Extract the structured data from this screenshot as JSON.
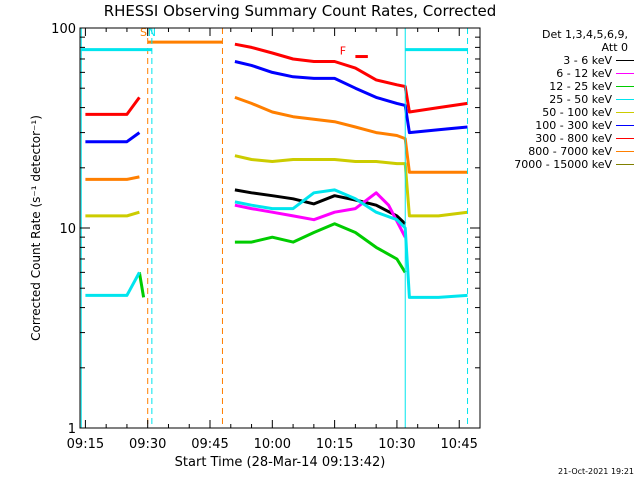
{
  "chart_data": {
    "type": "line",
    "title": "RHESSI Observing Summary Count Rates, Corrected",
    "xlabel": "Start Time (28-Mar-14 09:13:42)",
    "ylabel": "Corrected Count Rate (s⁻¹ detector⁻¹)",
    "y_scale": "log",
    "ylim": [
      1,
      100
    ],
    "y_ticks": [
      "1",
      "10",
      "100"
    ],
    "xlim": [
      "09:13:42",
      "10:50:00"
    ],
    "x_ticks": [
      "09:15",
      "09:30",
      "09:45",
      "10:00",
      "10:15",
      "10:30",
      "10:45"
    ],
    "legend_header": [
      "Det 1,3,4,5,6,9,",
      "Att 0"
    ],
    "legend_position": "right",
    "series": [
      {
        "name": "3 - 6 keV",
        "color": "#000000",
        "x": [
          "09:15",
          "09:20",
          "09:25",
          "09:28",
          "09:29",
          "09:51",
          "09:55",
          "10:00",
          "10:05",
          "10:10",
          "10:15",
          "10:20",
          "10:25",
          "10:30",
          "10:32"
        ],
        "y": [
          null,
          null,
          null,
          null,
          null,
          15.5,
          15,
          14.5,
          14,
          13.2,
          14.5,
          13.8,
          13,
          11.5,
          10.5
        ]
      },
      {
        "name": "6 - 12 keV",
        "color": "#ff00ff",
        "x": [
          "09:51",
          "09:55",
          "10:00",
          "10:05",
          "10:10",
          "10:15",
          "10:20",
          "10:25",
          "10:28",
          "10:32"
        ],
        "y": [
          13,
          12.5,
          12,
          11.5,
          11,
          12,
          12.5,
          15,
          13,
          9
        ]
      },
      {
        "name": "12 - 25 keV",
        "color": "#00cc00",
        "x": [
          "09:28",
          "09:29",
          "09:51",
          "09:55",
          "10:00",
          "10:05",
          "10:10",
          "10:15",
          "10:20",
          "10:25",
          "10:30",
          "10:32"
        ],
        "y": [
          6,
          4.5,
          8.5,
          8.5,
          9,
          8.5,
          9.5,
          10.5,
          9.5,
          8,
          7,
          6
        ]
      },
      {
        "name": "25 - 50 keV",
        "color": "#00e5ee",
        "x": [
          "09:15",
          "09:20",
          "09:25",
          "09:28",
          "09:51",
          "09:55",
          "10:00",
          "10:05",
          "10:10",
          "10:15",
          "10:20",
          "10:25",
          "10:30",
          "10:32",
          "10:33",
          "10:40",
          "10:47"
        ],
        "y": [
          4.6,
          4.6,
          4.6,
          6,
          13.5,
          13,
          12.5,
          12.5,
          15,
          15.5,
          14,
          12,
          11,
          10,
          4.5,
          4.5,
          4.6
        ]
      },
      {
        "name": "50 - 100 keV",
        "color": "#cccc00",
        "x": [
          "09:15",
          "09:20",
          "09:25",
          "09:28",
          "09:51",
          "09:55",
          "10:00",
          "10:05",
          "10:10",
          "10:15",
          "10:20",
          "10:25",
          "10:30",
          "10:32",
          "10:33",
          "10:40",
          "10:47"
        ],
        "y": [
          11.5,
          11.5,
          11.5,
          12,
          23,
          22,
          21.5,
          22,
          22,
          22,
          21.5,
          21.5,
          21,
          21,
          11.5,
          11.5,
          12
        ]
      },
      {
        "name": "100 - 300 keV",
        "color": "#0000ff",
        "x": [
          "09:15",
          "09:20",
          "09:25",
          "09:28",
          "09:51",
          "09:55",
          "10:00",
          "10:05",
          "10:10",
          "10:15",
          "10:20",
          "10:25",
          "10:30",
          "10:32",
          "10:33",
          "10:40",
          "10:47"
        ],
        "y": [
          27,
          27,
          27,
          30,
          68,
          65,
          60,
          57,
          56,
          56,
          50,
          45,
          42,
          41,
          30,
          31,
          32
        ]
      },
      {
        "name": "300 - 800 keV",
        "color": "#ff0000",
        "x": [
          "09:15",
          "09:20",
          "09:25",
          "09:28",
          "09:51",
          "09:55",
          "10:00",
          "10:05",
          "10:10",
          "10:15",
          "10:20",
          "10:25",
          "10:30",
          "10:32",
          "10:33",
          "10:40",
          "10:47"
        ],
        "y": [
          37,
          37,
          37,
          45,
          83,
          80,
          75,
          70,
          68,
          68,
          63,
          55,
          52,
          51,
          38,
          40,
          42
        ]
      },
      {
        "name": "800 - 7000 keV",
        "color": "#ff7f00",
        "x": [
          "09:15",
          "09:20",
          "09:25",
          "09:28",
          "09:51",
          "09:55",
          "10:00",
          "10:05",
          "10:10",
          "10:15",
          "10:20",
          "10:25",
          "10:30",
          "10:32",
          "10:33",
          "10:40",
          "10:47"
        ],
        "y": [
          17.5,
          17.5,
          17.5,
          18,
          45,
          42,
          38,
          36,
          35,
          34,
          32,
          30,
          29,
          28,
          19,
          19,
          19
        ]
      },
      {
        "name": "7000 - 15000 keV",
        "color": "#808000",
        "x": [],
        "y": []
      }
    ],
    "annotations": [
      {
        "text": "S",
        "color": "#ff7f00",
        "x": "09:29"
      },
      {
        "text": "N",
        "color": "#00e5ee",
        "x": "09:31"
      },
      {
        "text": "F",
        "color": "#ff0000",
        "x": "10:17"
      }
    ],
    "intervals": [
      {
        "kind": "saa",
        "color": "#ff7f00",
        "start": "09:30",
        "end": "09:48",
        "level": 85
      },
      {
        "kind": "night",
        "color": "#00e5ee",
        "start": "09:14",
        "end": "09:31",
        "level": 78
      },
      {
        "kind": "night",
        "color": "#00e5ee",
        "start": "10:32",
        "end": "10:47",
        "level": 78
      },
      {
        "kind": "flare",
        "color": "#ff0000",
        "start": "10:20",
        "end": "10:23",
        "level": 72
      }
    ],
    "grid": false
  },
  "footer": {
    "timestamp": "21-Oct-2021 19:21"
  }
}
